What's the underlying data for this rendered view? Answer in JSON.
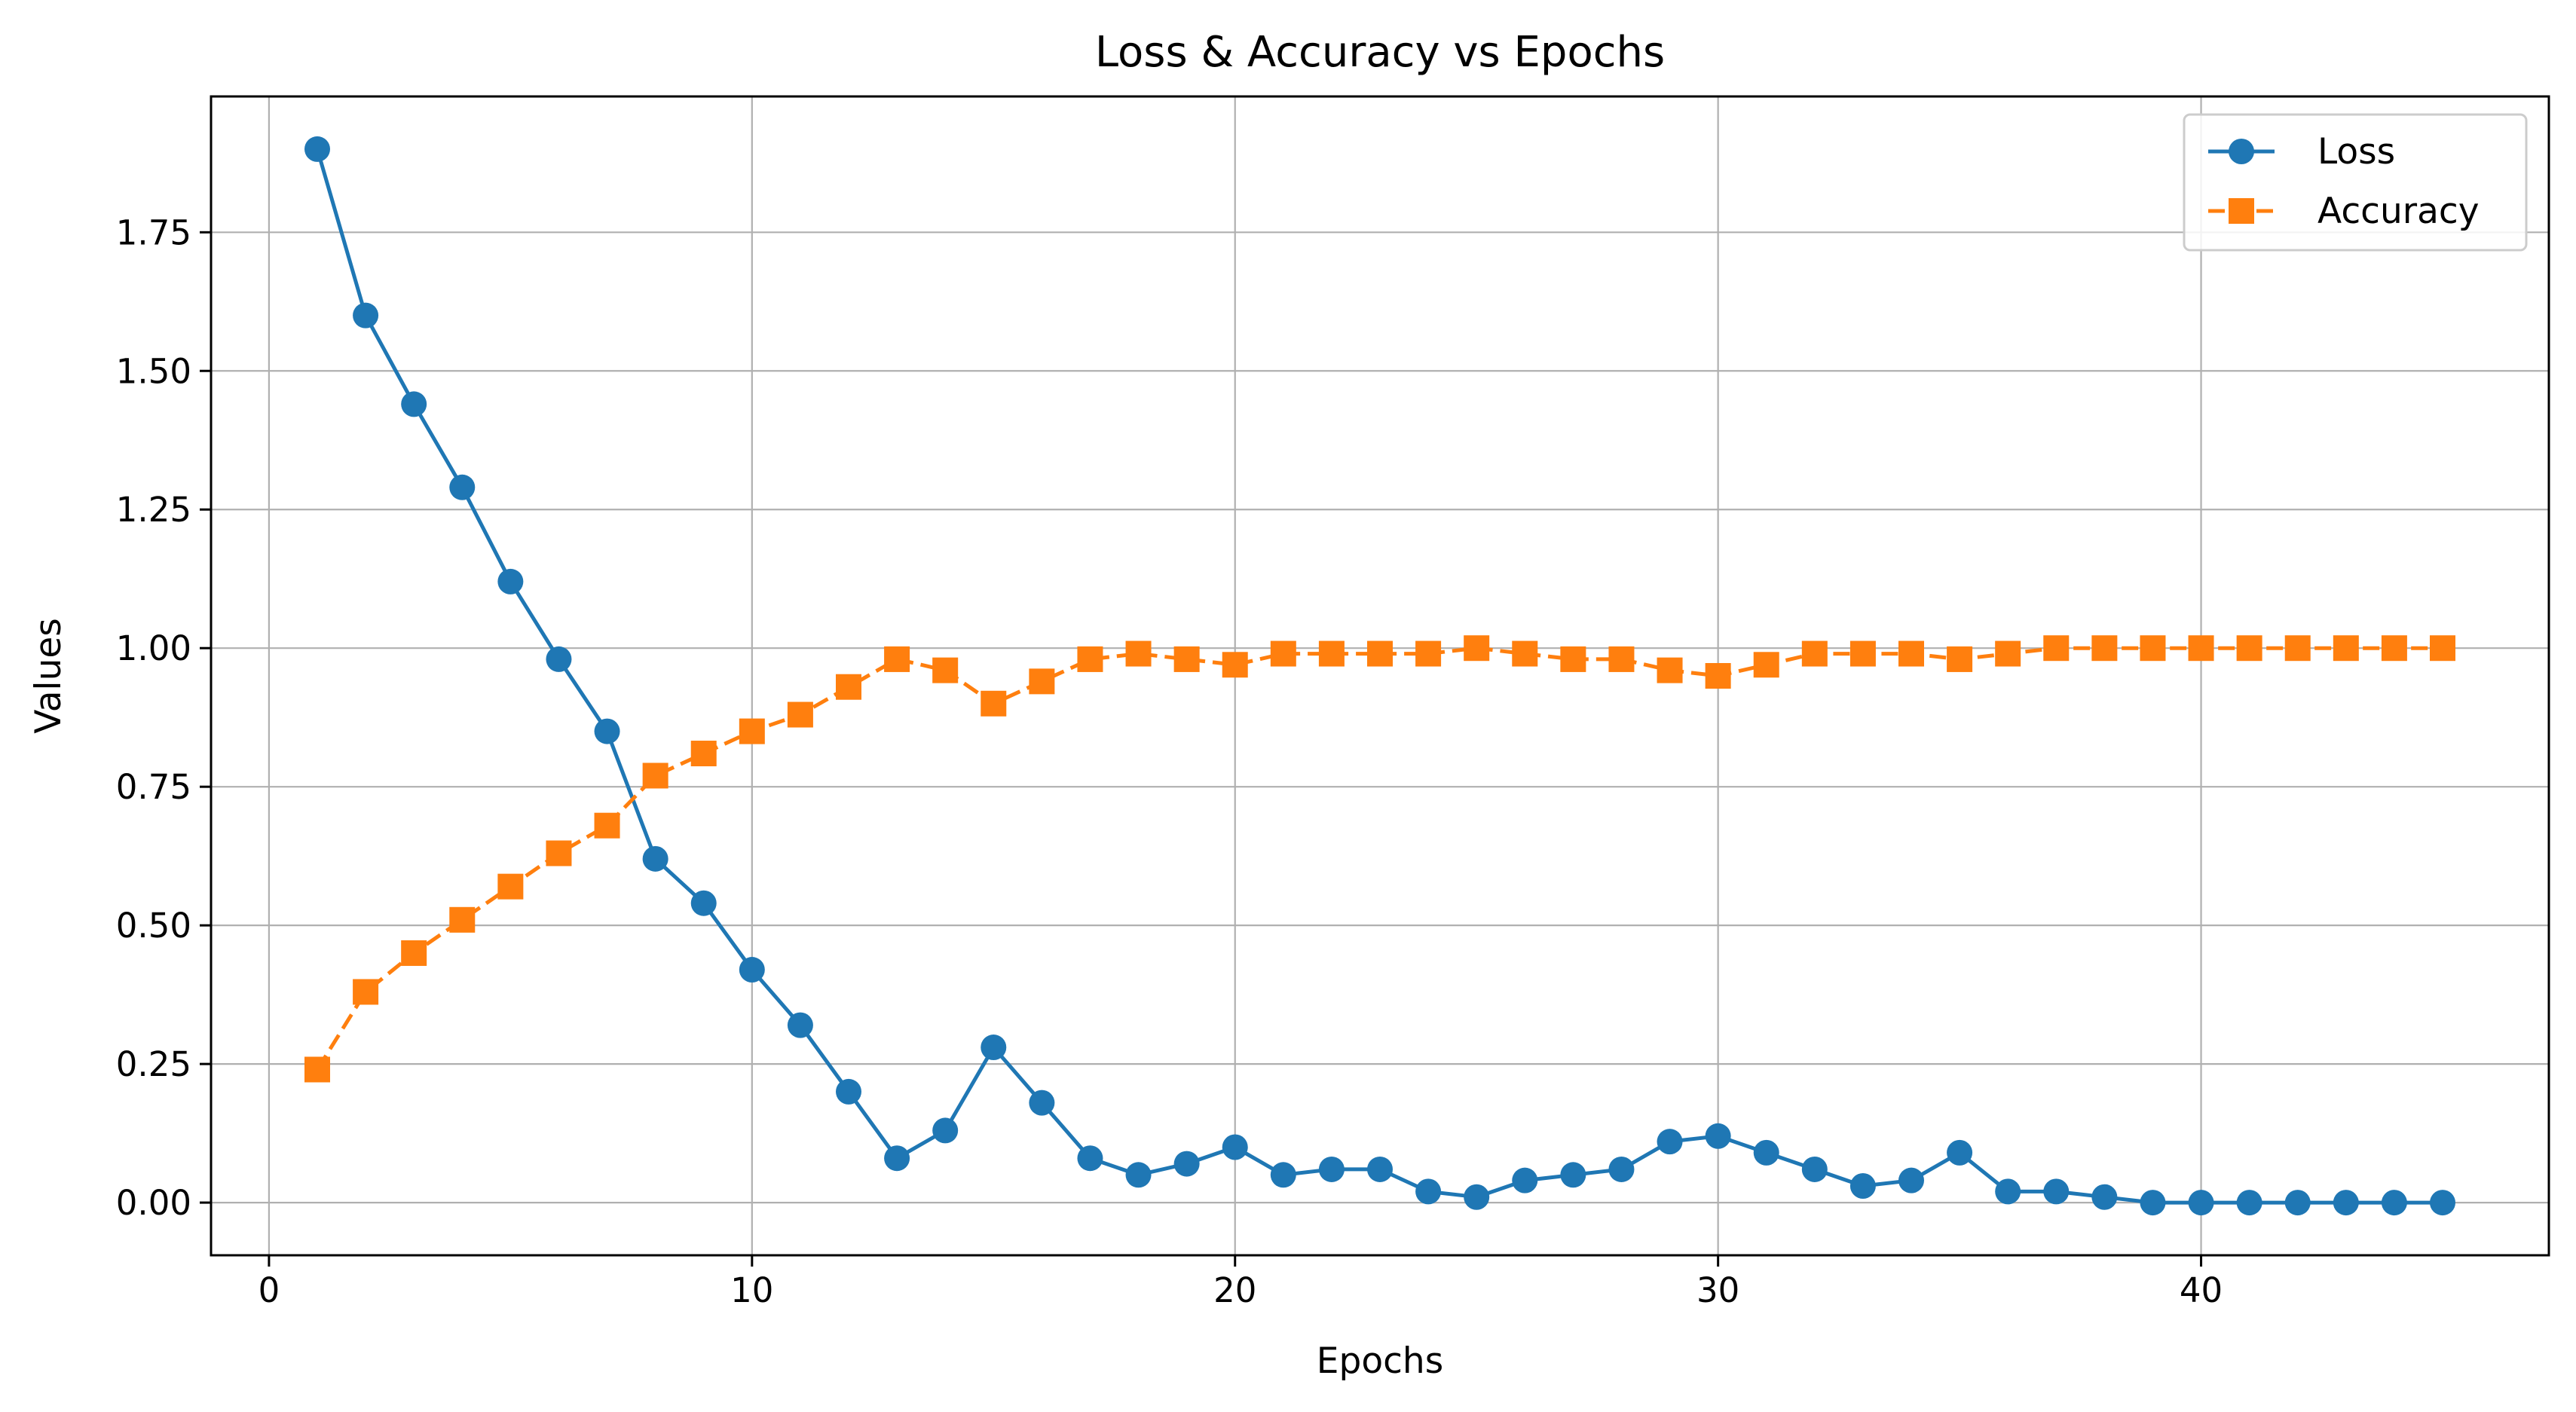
{
  "chart_data": {
    "type": "line",
    "title": "Loss & Accuracy vs Epochs",
    "xlabel": "Epochs",
    "ylabel": "Values",
    "xlim": [
      -1.2,
      47.2
    ],
    "ylim": [
      -0.095,
      1.995
    ],
    "xticks": [
      0,
      10,
      20,
      30,
      40
    ],
    "xtick_labels": [
      "0",
      "10",
      "20",
      "30",
      "40"
    ],
    "yticks": [
      0.0,
      0.25,
      0.5,
      0.75,
      1.0,
      1.25,
      1.5,
      1.75
    ],
    "ytick_labels": [
      "0.00",
      "0.25",
      "0.50",
      "0.75",
      "1.00",
      "1.25",
      "1.50",
      "1.75"
    ],
    "grid": true,
    "legend_position": "top-right",
    "x": [
      1,
      2,
      3,
      4,
      5,
      6,
      7,
      8,
      9,
      10,
      11,
      12,
      13,
      14,
      15,
      16,
      17,
      18,
      19,
      20,
      21,
      22,
      23,
      24,
      25,
      26,
      27,
      28,
      29,
      30,
      31,
      32,
      33,
      34,
      35,
      36,
      37,
      38,
      39,
      40,
      41,
      42,
      43,
      44,
      45
    ],
    "series": [
      {
        "name": "Loss",
        "color": "#1f77b4",
        "marker": "circle",
        "linestyle": "solid",
        "values": [
          1.9,
          1.6,
          1.44,
          1.29,
          1.12,
          0.98,
          0.85,
          0.62,
          0.54,
          0.42,
          0.32,
          0.2,
          0.08,
          0.13,
          0.28,
          0.18,
          0.08,
          0.05,
          0.07,
          0.1,
          0.05,
          0.06,
          0.06,
          0.02,
          0.01,
          0.04,
          0.05,
          0.06,
          0.11,
          0.12,
          0.09,
          0.06,
          0.03,
          0.04,
          0.09,
          0.02,
          0.02,
          0.01,
          0.0,
          0.0,
          0.0,
          0.0,
          0.0,
          0.0,
          0.0
        ]
      },
      {
        "name": "Accuracy",
        "color": "#ff7f0e",
        "marker": "square",
        "linestyle": "dashed",
        "values": [
          0.24,
          0.38,
          0.45,
          0.51,
          0.57,
          0.63,
          0.68,
          0.77,
          0.81,
          0.85,
          0.88,
          0.93,
          0.98,
          0.96,
          0.9,
          0.94,
          0.98,
          0.99,
          0.98,
          0.97,
          0.99,
          0.99,
          0.99,
          0.99,
          1.0,
          0.99,
          0.98,
          0.98,
          0.96,
          0.95,
          0.97,
          0.99,
          0.99,
          0.99,
          0.98,
          0.99,
          1.0,
          1.0,
          1.0,
          1.0,
          1.0,
          1.0,
          1.0,
          1.0,
          1.0
        ]
      }
    ]
  }
}
